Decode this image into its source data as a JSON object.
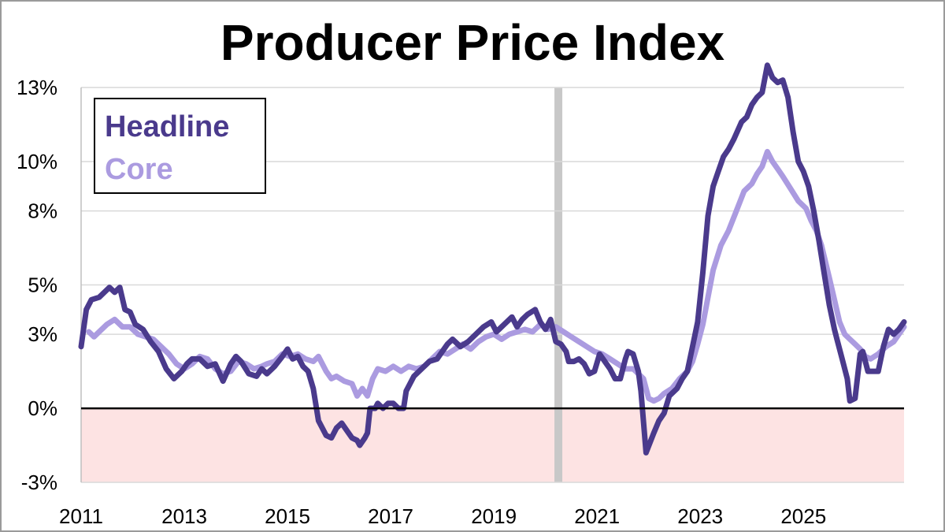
{
  "chart_data": {
    "type": "line",
    "title": "Producer Price Index",
    "xlabel": "",
    "ylabel": "",
    "x_range": [
      2011.0,
      2026.95
    ],
    "ylim": [
      -3,
      13
    ],
    "y_ticks": [
      -3,
      0,
      3,
      5,
      8,
      10,
      13
    ],
    "y_tick_labels": [
      "-3%",
      "0%",
      "3%",
      "5%",
      "8%",
      "10%",
      "13%"
    ],
    "x_ticks": [
      2011,
      2013,
      2015,
      2017,
      2019,
      2021,
      2023,
      2025
    ],
    "x_tick_labels": [
      "2011",
      "2013",
      "2015",
      "2017",
      "2019",
      "2021",
      "2023",
      "2025"
    ],
    "grid": "horizontal",
    "legend": "top-left",
    "shading": {
      "negative_region_color": "#fde3e3",
      "recession_marker_x": 2020.25,
      "recession_marker_color": "#c8c8c8"
    },
    "colors": {
      "headline": "#4a3a8c",
      "core": "#ab9be0",
      "zero_line": "#000000",
      "grid": "#d9d9d9"
    },
    "series": [
      {
        "name": "Headline",
        "color": "#4a3a8c",
        "points": [
          [
            2011.0,
            2.5
          ],
          [
            2011.1,
            4.0
          ],
          [
            2011.2,
            4.4
          ],
          [
            2011.35,
            4.5
          ],
          [
            2011.45,
            4.7
          ],
          [
            2011.55,
            4.9
          ],
          [
            2011.65,
            4.7
          ],
          [
            2011.75,
            4.9
          ],
          [
            2011.85,
            4.0
          ],
          [
            2011.95,
            3.9
          ],
          [
            2012.05,
            3.4
          ],
          [
            2012.2,
            3.2
          ],
          [
            2012.35,
            2.7
          ],
          [
            2012.5,
            2.3
          ],
          [
            2012.65,
            1.6
          ],
          [
            2012.8,
            1.2
          ],
          [
            2012.95,
            1.5
          ],
          [
            2013.05,
            1.8
          ],
          [
            2013.15,
            2.0
          ],
          [
            2013.3,
            2.0
          ],
          [
            2013.45,
            1.7
          ],
          [
            2013.6,
            1.8
          ],
          [
            2013.75,
            1.1
          ],
          [
            2013.9,
            1.8
          ],
          [
            2014.0,
            2.1
          ],
          [
            2014.1,
            1.9
          ],
          [
            2014.25,
            1.4
          ],
          [
            2014.4,
            1.3
          ],
          [
            2014.5,
            1.6
          ],
          [
            2014.6,
            1.4
          ],
          [
            2014.75,
            1.7
          ],
          [
            2014.9,
            2.1
          ],
          [
            2015.0,
            2.4
          ],
          [
            2015.1,
            2.0
          ],
          [
            2015.2,
            2.1
          ],
          [
            2015.3,
            1.7
          ],
          [
            2015.4,
            1.5
          ],
          [
            2015.5,
            0.8
          ],
          [
            2015.6,
            -0.5
          ],
          [
            2015.75,
            -1.1
          ],
          [
            2015.85,
            -1.2
          ],
          [
            2015.95,
            -0.8
          ],
          [
            2016.05,
            -0.6
          ],
          [
            2016.15,
            -0.9
          ],
          [
            2016.25,
            -1.2
          ],
          [
            2016.35,
            -1.3
          ],
          [
            2016.4,
            -1.5
          ],
          [
            2016.5,
            -1.2
          ],
          [
            2016.55,
            -1.0
          ],
          [
            2016.6,
            0.0
          ],
          [
            2016.7,
            0.0
          ],
          [
            2016.75,
            0.2
          ],
          [
            2016.85,
            0.0
          ],
          [
            2016.95,
            0.2
          ],
          [
            2017.05,
            0.2
          ],
          [
            2017.15,
            0.0
          ],
          [
            2017.25,
            0.0
          ],
          [
            2017.3,
            0.7
          ],
          [
            2017.45,
            1.3
          ],
          [
            2017.6,
            1.6
          ],
          [
            2017.75,
            1.9
          ],
          [
            2017.9,
            2.0
          ],
          [
            2018.0,
            2.3
          ],
          [
            2018.1,
            2.6
          ],
          [
            2018.2,
            2.8
          ],
          [
            2018.35,
            2.5
          ],
          [
            2018.5,
            2.7
          ],
          [
            2018.65,
            3.0
          ],
          [
            2018.8,
            3.3
          ],
          [
            2018.95,
            3.5
          ],
          [
            2019.05,
            3.1
          ],
          [
            2019.2,
            3.4
          ],
          [
            2019.35,
            3.7
          ],
          [
            2019.45,
            3.3
          ],
          [
            2019.55,
            3.6
          ],
          [
            2019.65,
            3.8
          ],
          [
            2019.8,
            4.0
          ],
          [
            2019.9,
            3.5
          ],
          [
            2020.0,
            3.2
          ],
          [
            2020.1,
            3.6
          ],
          [
            2020.2,
            2.7
          ],
          [
            2020.3,
            2.6
          ],
          [
            2020.4,
            2.3
          ],
          [
            2020.45,
            1.9
          ],
          [
            2020.55,
            1.9
          ],
          [
            2020.65,
            2.0
          ],
          [
            2020.75,
            1.8
          ],
          [
            2020.85,
            1.4
          ],
          [
            2020.95,
            1.5
          ],
          [
            2021.05,
            2.2
          ],
          [
            2021.15,
            1.9
          ],
          [
            2021.25,
            1.6
          ],
          [
            2021.35,
            1.2
          ],
          [
            2021.45,
            1.2
          ],
          [
            2021.55,
            2.0
          ],
          [
            2021.6,
            2.3
          ],
          [
            2021.7,
            2.2
          ],
          [
            2021.8,
            1.5
          ],
          [
            2021.85,
            0.7
          ],
          [
            2021.95,
            -1.8
          ],
          [
            2022.1,
            -1.0
          ],
          [
            2022.2,
            -0.5
          ],
          [
            2022.3,
            -0.2
          ],
          [
            2022.4,
            0.5
          ],
          [
            2022.55,
            0.8
          ],
          [
            2022.65,
            1.2
          ],
          [
            2022.75,
            1.5
          ],
          [
            2022.85,
            2.5
          ],
          [
            2022.95,
            3.5
          ],
          [
            2023.05,
            5.5
          ],
          [
            2023.15,
            7.8
          ],
          [
            2023.25,
            9.0
          ],
          [
            2023.35,
            9.6
          ],
          [
            2023.45,
            10.2
          ],
          [
            2023.55,
            10.5
          ],
          [
            2023.65,
            10.9
          ],
          [
            2023.8,
            11.6
          ],
          [
            2023.9,
            11.8
          ],
          [
            2024.0,
            12.3
          ],
          [
            2024.1,
            12.6
          ],
          [
            2024.2,
            12.8
          ],
          [
            2024.3,
            13.9
          ],
          [
            2024.4,
            13.4
          ],
          [
            2024.5,
            13.2
          ],
          [
            2024.6,
            13.3
          ],
          [
            2024.7,
            12.6
          ],
          [
            2024.8,
            11.2
          ],
          [
            2024.9,
            10.0
          ],
          [
            2025.0,
            9.6
          ],
          [
            2025.1,
            9.0
          ],
          [
            2025.2,
            8.0
          ],
          [
            2025.3,
            6.8
          ],
          [
            2025.4,
            5.5
          ],
          [
            2025.5,
            4.2
          ],
          [
            2025.6,
            3.2
          ],
          [
            2025.65,
            2.8
          ],
          [
            2025.75,
            2.0
          ],
          [
            2025.85,
            1.2
          ],
          [
            2025.9,
            0.3
          ],
          [
            2026.0,
            0.4
          ],
          [
            2026.1,
            2.2
          ],
          [
            2026.15,
            2.3
          ],
          [
            2026.25,
            1.5
          ],
          [
            2026.35,
            1.5
          ],
          [
            2026.45,
            1.5
          ],
          [
            2026.55,
            2.5
          ],
          [
            2026.65,
            3.2
          ],
          [
            2026.75,
            3.0
          ],
          [
            2026.85,
            3.2
          ],
          [
            2026.95,
            3.5
          ]
        ]
      },
      {
        "name": "Core",
        "color": "#ab9be0",
        "points": [
          [
            2011.15,
            3.1
          ],
          [
            2011.25,
            2.9
          ],
          [
            2011.35,
            3.1
          ],
          [
            2011.5,
            3.4
          ],
          [
            2011.65,
            3.6
          ],
          [
            2011.8,
            3.3
          ],
          [
            2011.95,
            3.3
          ],
          [
            2012.1,
            3.0
          ],
          [
            2012.25,
            2.9
          ],
          [
            2012.4,
            2.8
          ],
          [
            2012.55,
            2.5
          ],
          [
            2012.7,
            2.2
          ],
          [
            2012.85,
            1.8
          ],
          [
            2013.0,
            1.6
          ],
          [
            2013.15,
            1.8
          ],
          [
            2013.3,
            2.1
          ],
          [
            2013.45,
            2.0
          ],
          [
            2013.6,
            1.6
          ],
          [
            2013.75,
            1.4
          ],
          [
            2013.9,
            1.5
          ],
          [
            2014.05,
            1.9
          ],
          [
            2014.2,
            1.8
          ],
          [
            2014.35,
            1.6
          ],
          [
            2014.5,
            1.7
          ],
          [
            2014.6,
            1.8
          ],
          [
            2014.75,
            1.9
          ],
          [
            2014.9,
            2.2
          ],
          [
            2015.05,
            2.1
          ],
          [
            2015.2,
            2.2
          ],
          [
            2015.35,
            2.0
          ],
          [
            2015.5,
            1.9
          ],
          [
            2015.6,
            2.1
          ],
          [
            2015.75,
            1.5
          ],
          [
            2015.85,
            1.2
          ],
          [
            2015.95,
            1.3
          ],
          [
            2016.1,
            1.1
          ],
          [
            2016.25,
            1.0
          ],
          [
            2016.35,
            0.5
          ],
          [
            2016.45,
            0.8
          ],
          [
            2016.55,
            0.5
          ],
          [
            2016.65,
            1.2
          ],
          [
            2016.75,
            1.6
          ],
          [
            2016.9,
            1.5
          ],
          [
            2017.05,
            1.7
          ],
          [
            2017.2,
            1.5
          ],
          [
            2017.35,
            1.7
          ],
          [
            2017.5,
            1.6
          ],
          [
            2017.65,
            1.7
          ],
          [
            2017.8,
            2.0
          ],
          [
            2017.95,
            2.3
          ],
          [
            2018.1,
            2.2
          ],
          [
            2018.25,
            2.4
          ],
          [
            2018.4,
            2.6
          ],
          [
            2018.55,
            2.4
          ],
          [
            2018.7,
            2.7
          ],
          [
            2018.85,
            2.9
          ],
          [
            2019.0,
            3.0
          ],
          [
            2019.15,
            2.8
          ],
          [
            2019.3,
            3.0
          ],
          [
            2019.45,
            3.1
          ],
          [
            2019.6,
            3.2
          ],
          [
            2019.75,
            3.1
          ],
          [
            2019.9,
            3.4
          ],
          [
            2020.05,
            3.2
          ],
          [
            2020.2,
            3.3
          ],
          [
            2020.35,
            3.1
          ],
          [
            2020.5,
            2.9
          ],
          [
            2020.65,
            2.7
          ],
          [
            2020.8,
            2.5
          ],
          [
            2020.95,
            2.3
          ],
          [
            2021.1,
            2.2
          ],
          [
            2021.25,
            2.0
          ],
          [
            2021.4,
            1.8
          ],
          [
            2021.55,
            1.6
          ],
          [
            2021.7,
            1.6
          ],
          [
            2021.8,
            1.4
          ],
          [
            2021.9,
            1.2
          ],
          [
            2022.0,
            0.4
          ],
          [
            2022.1,
            0.3
          ],
          [
            2022.2,
            0.4
          ],
          [
            2022.3,
            0.6
          ],
          [
            2022.45,
            0.8
          ],
          [
            2022.6,
            1.2
          ],
          [
            2022.75,
            1.5
          ],
          [
            2022.85,
            1.9
          ],
          [
            2022.95,
            2.6
          ],
          [
            2023.05,
            3.4
          ],
          [
            2023.15,
            4.5
          ],
          [
            2023.25,
            5.6
          ],
          [
            2023.4,
            6.6
          ],
          [
            2023.55,
            7.2
          ],
          [
            2023.7,
            8.0
          ],
          [
            2023.85,
            8.8
          ],
          [
            2024.0,
            9.1
          ],
          [
            2024.1,
            9.5
          ],
          [
            2024.2,
            9.8
          ],
          [
            2024.3,
            10.4
          ],
          [
            2024.4,
            10.0
          ],
          [
            2024.5,
            9.7
          ],
          [
            2024.6,
            9.4
          ],
          [
            2024.75,
            8.9
          ],
          [
            2024.9,
            8.4
          ],
          [
            2025.05,
            8.1
          ],
          [
            2025.15,
            7.6
          ],
          [
            2025.25,
            7.2
          ],
          [
            2025.35,
            6.6
          ],
          [
            2025.5,
            5.3
          ],
          [
            2025.6,
            4.4
          ],
          [
            2025.7,
            3.5
          ],
          [
            2025.8,
            3.0
          ],
          [
            2025.9,
            2.8
          ],
          [
            2026.0,
            2.6
          ],
          [
            2026.1,
            2.4
          ],
          [
            2026.2,
            2.1
          ],
          [
            2026.3,
            2.0
          ],
          [
            2026.45,
            2.2
          ],
          [
            2026.6,
            2.5
          ],
          [
            2026.75,
            2.7
          ],
          [
            2026.85,
            3.0
          ],
          [
            2026.95,
            3.3
          ]
        ]
      }
    ]
  }
}
